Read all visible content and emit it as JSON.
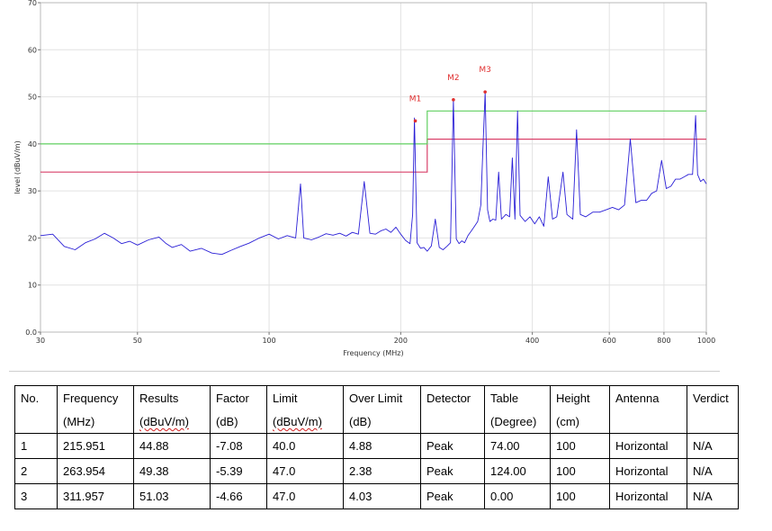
{
  "chart_data": {
    "type": "line",
    "xlabel": "Frequency (MHz)",
    "ylabel": "level (dBuV/m)",
    "xscale": "log",
    "xlim": [
      30,
      1000
    ],
    "ylim": [
      0,
      70
    ],
    "x_ticks": [
      30,
      50,
      100,
      200,
      400,
      600,
      800,
      1000
    ],
    "x_tick_labels": [
      "30",
      "50",
      "100",
      "200",
      "400",
      "600",
      "800",
      "1000"
    ],
    "y_ticks": [
      0,
      10,
      20,
      30,
      40,
      50,
      60,
      70
    ],
    "y_tick_labels": [
      "0.0",
      "10",
      "20",
      "30",
      "40",
      "50",
      "60",
      "70"
    ],
    "grid": true,
    "colors": {
      "trace": "#2a1fd6",
      "limit_red": "#d9416a",
      "limit_green": "#60d060",
      "marker": "#e03030"
    },
    "series": [
      {
        "values": [
          [
            30,
            20.5
          ],
          [
            32,
            20.8
          ],
          [
            34,
            18.2
          ],
          [
            36,
            17.5
          ],
          [
            38,
            19.0
          ],
          [
            40,
            19.8
          ],
          [
            42,
            21.0
          ],
          [
            44,
            20.0
          ],
          [
            46,
            18.8
          ],
          [
            48,
            19.3
          ],
          [
            50,
            18.5
          ],
          [
            53,
            19.6
          ],
          [
            56,
            20.2
          ],
          [
            58,
            18.9
          ],
          [
            60,
            18.0
          ],
          [
            63,
            18.6
          ],
          [
            66,
            17.2
          ],
          [
            70,
            17.8
          ],
          [
            74,
            16.8
          ],
          [
            78,
            16.5
          ],
          [
            82,
            17.4
          ],
          [
            86,
            18.2
          ],
          [
            90,
            18.9
          ],
          [
            95,
            20.0
          ],
          [
            100,
            20.8
          ],
          [
            105,
            19.8
          ],
          [
            110,
            20.5
          ],
          [
            115,
            20.0
          ],
          [
            118,
            31.5
          ],
          [
            120,
            20.0
          ],
          [
            125,
            19.6
          ],
          [
            130,
            20.2
          ],
          [
            135,
            20.9
          ],
          [
            140,
            20.6
          ],
          [
            145,
            21.0
          ],
          [
            150,
            20.4
          ],
          [
            155,
            21.2
          ],
          [
            160,
            20.8
          ],
          [
            165,
            32.0
          ],
          [
            170,
            21.0
          ],
          [
            175,
            20.8
          ],
          [
            180,
            21.5
          ],
          [
            185,
            21.9
          ],
          [
            190,
            21.2
          ],
          [
            195,
            22.3
          ],
          [
            200,
            20.8
          ],
          [
            205,
            19.5
          ],
          [
            210,
            18.8
          ],
          [
            213,
            25.0
          ],
          [
            215,
            45.5
          ],
          [
            218,
            19.0
          ],
          [
            222,
            17.8
          ],
          [
            226,
            18.0
          ],
          [
            230,
            17.2
          ],
          [
            235,
            18.3
          ],
          [
            240,
            24.0
          ],
          [
            245,
            18.0
          ],
          [
            250,
            17.5
          ],
          [
            255,
            18.2
          ],
          [
            260,
            19.0
          ],
          [
            264,
            49.5
          ],
          [
            268,
            19.8
          ],
          [
            272,
            18.8
          ],
          [
            276,
            19.4
          ],
          [
            280,
            19.0
          ],
          [
            285,
            20.5
          ],
          [
            290,
            21.5
          ],
          [
            295,
            22.5
          ],
          [
            300,
            23.5
          ],
          [
            305,
            27.0
          ],
          [
            308,
            38.0
          ],
          [
            312,
            51.0
          ],
          [
            316,
            26.0
          ],
          [
            320,
            23.5
          ],
          [
            325,
            24.0
          ],
          [
            330,
            23.8
          ],
          [
            335,
            34.0
          ],
          [
            340,
            24.0
          ],
          [
            348,
            25.0
          ],
          [
            355,
            24.5
          ],
          [
            360,
            37.0
          ],
          [
            365,
            24.0
          ],
          [
            370,
            47.0
          ],
          [
            375,
            24.8
          ],
          [
            385,
            23.5
          ],
          [
            395,
            24.5
          ],
          [
            405,
            23.0
          ],
          [
            415,
            24.5
          ],
          [
            425,
            22.5
          ],
          [
            435,
            33.0
          ],
          [
            445,
            24.0
          ],
          [
            455,
            24.5
          ],
          [
            470,
            34.0
          ],
          [
            480,
            25.0
          ],
          [
            495,
            24.0
          ],
          [
            505,
            43.0
          ],
          [
            515,
            25.0
          ],
          [
            530,
            24.5
          ],
          [
            550,
            25.5
          ],
          [
            570,
            25.5
          ],
          [
            590,
            26.0
          ],
          [
            610,
            26.5
          ],
          [
            630,
            26.0
          ],
          [
            650,
            27.0
          ],
          [
            670,
            41.0
          ],
          [
            690,
            27.5
          ],
          [
            710,
            28.0
          ],
          [
            730,
            28.0
          ],
          [
            750,
            29.5
          ],
          [
            770,
            30.0
          ],
          [
            790,
            36.5
          ],
          [
            810,
            30.5
          ],
          [
            830,
            31.0
          ],
          [
            850,
            32.5
          ],
          [
            870,
            32.5
          ],
          [
            890,
            33.0
          ],
          [
            910,
            33.5
          ],
          [
            930,
            33.5
          ],
          [
            945,
            46.0
          ],
          [
            955,
            33.5
          ],
          [
            970,
            32.0
          ],
          [
            985,
            32.5
          ],
          [
            1000,
            31.5
          ]
        ]
      }
    ],
    "limit_lines": [
      {
        "color": "#d9416a",
        "points": [
          [
            30,
            34
          ],
          [
            230,
            34
          ],
          [
            230,
            41
          ],
          [
            1000,
            41
          ]
        ]
      },
      {
        "color": "#60d060",
        "points": [
          [
            30,
            40
          ],
          [
            230,
            40
          ],
          [
            230,
            47
          ],
          [
            1000,
            47
          ]
        ]
      }
    ],
    "markers": [
      {
        "label": "M1",
        "x": 215.951,
        "y": 44.88
      },
      {
        "label": "M2",
        "x": 263.954,
        "y": 49.38
      },
      {
        "label": "M3",
        "x": 311.957,
        "y": 51.03
      }
    ]
  },
  "table": {
    "headers": [
      {
        "l1": "No.",
        "l2": ""
      },
      {
        "l1": "Frequency",
        "l2": "(MHz)"
      },
      {
        "l1": "Results",
        "l2": "(dBuV/m)"
      },
      {
        "l1": "Factor",
        "l2": "(dB)"
      },
      {
        "l1": "Limit",
        "l2": "(dBuV/m)"
      },
      {
        "l1": "Over Limit",
        "l2": "(dB)"
      },
      {
        "l1": "Detector",
        "l2": ""
      },
      {
        "l1": "Table",
        "l2": "(Degree)"
      },
      {
        "l1": "Height",
        "l2": "(cm)"
      },
      {
        "l1": "Antenna",
        "l2": ""
      },
      {
        "l1": "Verdict",
        "l2": ""
      }
    ],
    "rows": [
      [
        "1",
        "215.951",
        "44.88",
        "-7.08",
        "40.0",
        "4.88",
        "Peak",
        "74.00",
        "100",
        "Horizontal",
        "N/A"
      ],
      [
        "2",
        "263.954",
        "49.38",
        "-5.39",
        "47.0",
        "2.38",
        "Peak",
        "124.00",
        "100",
        "Horizontal",
        "N/A"
      ],
      [
        "3",
        "311.957",
        "51.03",
        "-4.66",
        "47.0",
        "4.03",
        "Peak",
        "0.00",
        "100",
        "Horizontal",
        "N/A"
      ]
    ]
  }
}
